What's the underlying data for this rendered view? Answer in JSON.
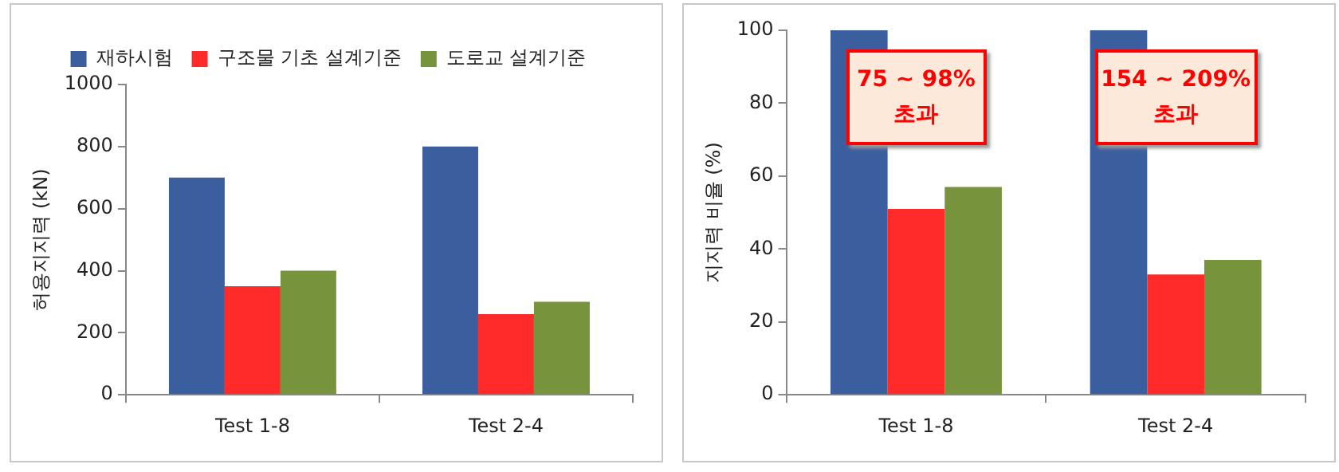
{
  "chart_data": [
    {
      "type": "bar",
      "ylabel": "허용지지력 (kN)",
      "categories": [
        "Test 1-8",
        "Test 2-4"
      ],
      "series": [
        {
          "name": "재하시험",
          "color": "#3b5f9e",
          "values": [
            700,
            800
          ]
        },
        {
          "name": "구조물 기초 설계기준",
          "color": "#ff2a2a",
          "values": [
            350,
            260
          ]
        },
        {
          "name": "도로교 설계기준",
          "color": "#77933c",
          "values": [
            400,
            300
          ]
        }
      ],
      "ylim": [
        0,
        1000
      ],
      "yticks": [
        0,
        200,
        400,
        600,
        800,
        1000
      ],
      "grid": false,
      "legend": "top"
    },
    {
      "type": "bar",
      "ylabel": "지지력 비율 (%)",
      "categories": [
        "Test 1-8",
        "Test 2-4"
      ],
      "series": [
        {
          "color": "#3b5f9e",
          "values": [
            100,
            100
          ]
        },
        {
          "color": "#ff2a2a",
          "values": [
            51,
            33
          ]
        },
        {
          "color": "#77933c",
          "values": [
            57,
            37
          ]
        }
      ],
      "ylim": [
        0,
        100
      ],
      "yticks": [
        0,
        20,
        40,
        60,
        80,
        100
      ],
      "grid": false,
      "legend": false,
      "annotations": [
        "75 ~ 98%\n초과",
        "154 ~ 209%\n초과"
      ]
    }
  ]
}
